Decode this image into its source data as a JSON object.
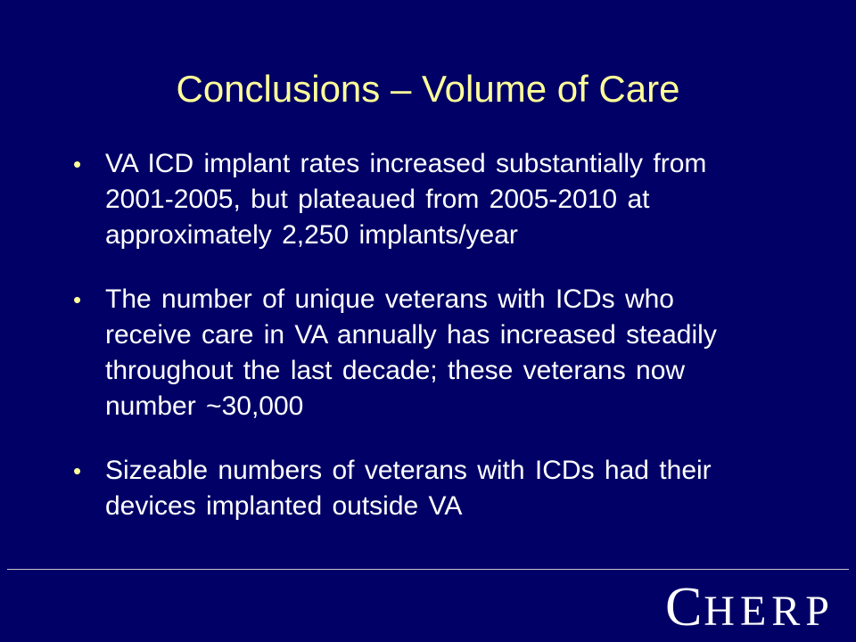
{
  "slide": {
    "title": "Conclusions – Volume of Care",
    "bullet_marker": "•",
    "bullets": [
      "VA ICD implant rates increased substantially from 2001-2005, but plateaued from 2005-2010 at approximately 2,250 implants/year",
      "The number of unique veterans with ICDs who receive care in VA annually has increased steadily throughout the last decade; these veterans now number ~30,000",
      "Sizeable numbers of veterans with ICDs had their devices implanted outside VA"
    ]
  },
  "logo": {
    "text": "CHERP",
    "first_letter": "C",
    "rest": "HERP"
  },
  "colors": {
    "background": "#000066",
    "title": "#FFFF99",
    "body_text": "#FFFFFF",
    "bullet": "#FFFF99",
    "divider": "#C8C8C8"
  }
}
